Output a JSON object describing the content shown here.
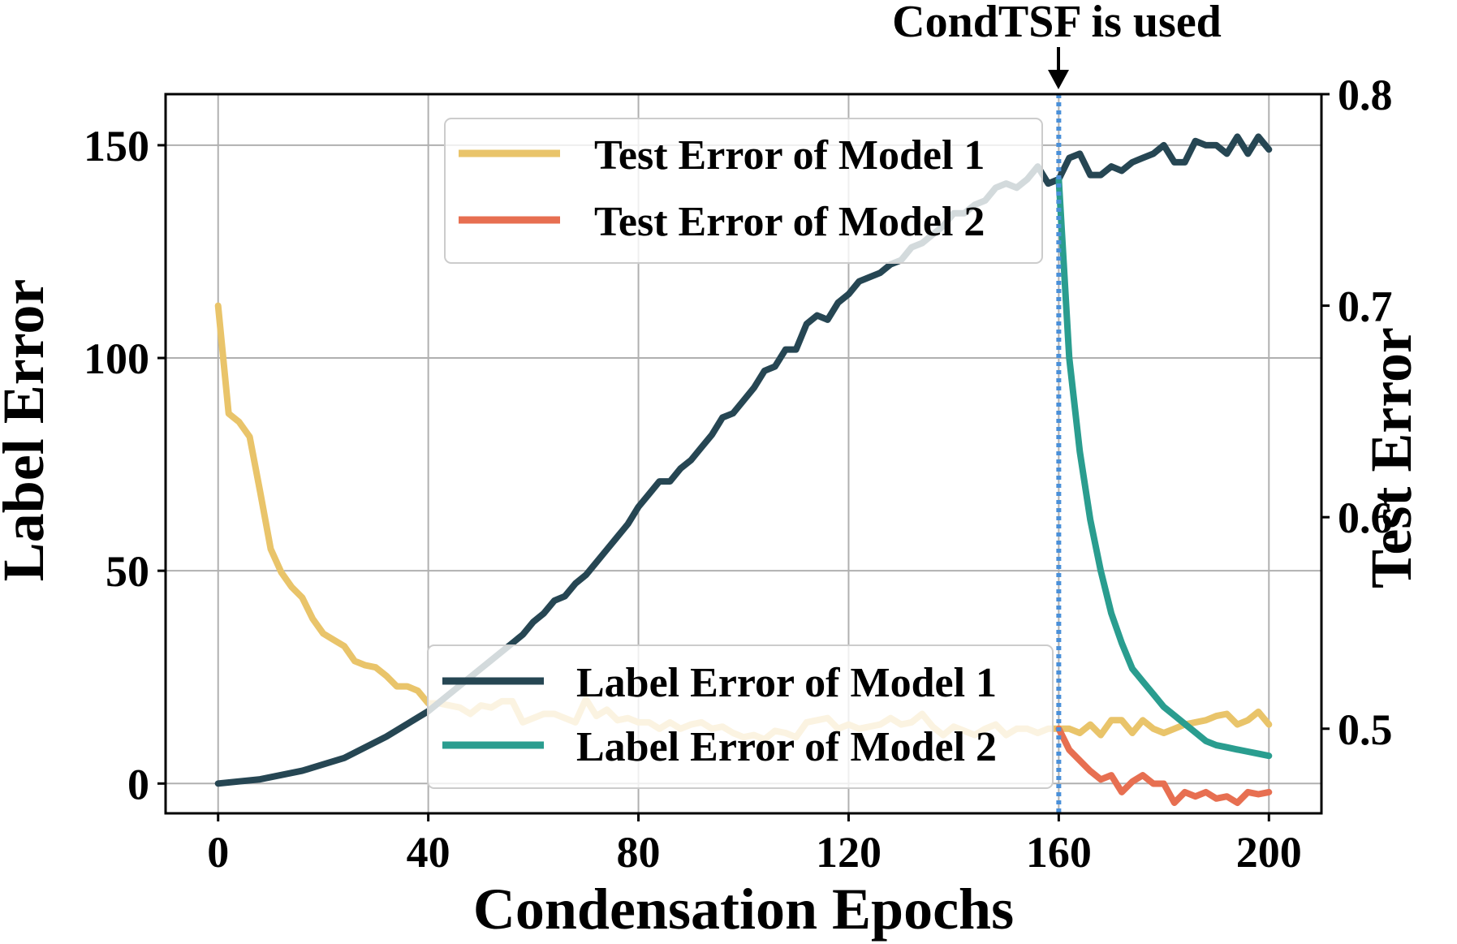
{
  "chart_data": {
    "type": "line",
    "annotation": {
      "text": "CondTSF is used",
      "x": 160
    },
    "xlabel": "Condensation Epochs",
    "ylabel_left": "Label Error",
    "ylabel_right": "Test Error",
    "xlim": [
      -10,
      210
    ],
    "ylim_left": [
      -7,
      162
    ],
    "ylim_right": [
      0.46,
      0.8
    ],
    "xticks": [
      "0",
      "40",
      "80",
      "120",
      "160",
      "200"
    ],
    "yticks_left": [
      "0",
      "50",
      "100",
      "150"
    ],
    "yticks_right": [
      "0.5",
      "0.6",
      "0.7",
      "0.8"
    ],
    "grid": true,
    "colors": {
      "label1": "#264653",
      "label2": "#2a9d8f",
      "test1": "#e9c46a",
      "test2": "#e76f51",
      "vline": "#4a90d9"
    },
    "legend_test": {
      "position": "top-center",
      "entries": [
        "Test Error of Model 1",
        "Test Error of Model 2"
      ]
    },
    "legend_label": {
      "position": "bottom-center",
      "entries": [
        "Label Error of Model 1",
        "Label Error of Model 2"
      ]
    },
    "series": [
      {
        "name": "Label Error of Model 1",
        "axis": "left",
        "x": [
          0,
          4,
          8,
          12,
          16,
          20,
          24,
          28,
          32,
          36,
          40,
          44,
          48,
          52,
          56,
          58,
          60,
          62,
          64,
          66,
          68,
          70,
          72,
          74,
          76,
          78,
          80,
          82,
          84,
          86,
          88,
          90,
          92,
          94,
          96,
          98,
          100,
          102,
          104,
          106,
          108,
          110,
          112,
          114,
          116,
          118,
          120,
          122,
          124,
          126,
          128,
          130,
          132,
          134,
          136,
          138,
          140,
          142,
          144,
          146,
          148,
          150,
          152,
          154,
          156,
          158,
          160,
          162,
          164,
          166,
          168,
          170,
          172,
          174,
          176,
          178,
          180,
          182,
          184,
          186,
          188,
          190,
          192,
          194,
          196,
          198,
          200
        ],
        "y": [
          0,
          0.5,
          1,
          2,
          3,
          4.5,
          6,
          8.5,
          11,
          14,
          17,
          21,
          25,
          29,
          33,
          35,
          38,
          40,
          43,
          44,
          47,
          49,
          52,
          55,
          58,
          61,
          65,
          68,
          71,
          71,
          74,
          76,
          79,
          82,
          86,
          87,
          90,
          93,
          97,
          98,
          102,
          102,
          108,
          110,
          109,
          113,
          115,
          118,
          119,
          120,
          122,
          123,
          126,
          127,
          129,
          131,
          134,
          134,
          136,
          137,
          140,
          141,
          140,
          142,
          145,
          141,
          142,
          147,
          148,
          143,
          143,
          145,
          144,
          146,
          147,
          148,
          150,
          146,
          146,
          151,
          150,
          150,
          148,
          152,
          148,
          152,
          149
        ]
      },
      {
        "name": "Label Error of Model 2",
        "axis": "left",
        "x": [
          160,
          162,
          164,
          166,
          168,
          170,
          172,
          174,
          176,
          178,
          180,
          182,
          184,
          186,
          188,
          190,
          192,
          194,
          196,
          198,
          200
        ],
        "y": [
          142,
          100,
          78,
          62,
          50,
          40,
          33,
          27,
          24,
          21,
          18,
          16,
          14,
          12,
          10,
          9,
          8.5,
          8,
          7.5,
          7,
          6.5
        ]
      },
      {
        "name": "Test Error of Model 1",
        "axis": "right",
        "x": [
          0,
          2,
          4,
          6,
          8,
          10,
          12,
          14,
          16,
          18,
          20,
          22,
          24,
          26,
          28,
          30,
          32,
          34,
          36,
          38,
          40,
          42,
          44,
          46,
          48,
          50,
          52,
          54,
          56,
          58,
          60,
          62,
          64,
          66,
          68,
          70,
          72,
          74,
          76,
          78,
          80,
          82,
          84,
          86,
          88,
          90,
          92,
          94,
          96,
          98,
          100,
          102,
          104,
          106,
          108,
          110,
          112,
          114,
          116,
          118,
          120,
          122,
          124,
          126,
          128,
          130,
          132,
          134,
          136,
          138,
          140,
          142,
          144,
          146,
          148,
          150,
          152,
          154,
          156,
          158,
          160,
          162,
          164,
          166,
          168,
          170,
          172,
          174,
          176,
          178,
          180,
          182,
          184,
          186,
          188,
          190,
          192,
          194,
          196,
          198,
          200
        ],
        "y": [
          0.7,
          0.649,
          0.645,
          0.638,
          0.612,
          0.585,
          0.574,
          0.567,
          0.562,
          0.552,
          0.545,
          0.542,
          0.539,
          0.532,
          0.53,
          0.529,
          0.525,
          0.52,
          0.52,
          0.518,
          0.512,
          0.512,
          0.511,
          0.51,
          0.507,
          0.511,
          0.51,
          0.513,
          0.513,
          0.503,
          0.505,
          0.507,
          0.507,
          0.505,
          0.503,
          0.514,
          0.506,
          0.509,
          0.504,
          0.505,
          0.503,
          0.503,
          0.5,
          0.503,
          0.5,
          0.502,
          0.503,
          0.5,
          0.501,
          0.498,
          0.496,
          0.497,
          0.495,
          0.499,
          0.498,
          0.496,
          0.503,
          0.504,
          0.505,
          0.5,
          0.502,
          0.5,
          0.501,
          0.502,
          0.505,
          0.502,
          0.503,
          0.507,
          0.501,
          0.497,
          0.501,
          0.499,
          0.497,
          0.5,
          0.502,
          0.497,
          0.5,
          0.5,
          0.498,
          0.5,
          0.5,
          0.5,
          0.498,
          0.502,
          0.497,
          0.504,
          0.504,
          0.498,
          0.504,
          0.5,
          0.498,
          0.5,
          0.502,
          0.503,
          0.504,
          0.506,
          0.507,
          0.502,
          0.504,
          0.508,
          0.502
        ]
      },
      {
        "name": "Test Error of Model 2",
        "axis": "right",
        "x": [
          160,
          162,
          164,
          166,
          168,
          170,
          172,
          174,
          176,
          178,
          180,
          182,
          184,
          186,
          188,
          190,
          192,
          194,
          196,
          198,
          200
        ],
        "y": [
          0.5,
          0.49,
          0.485,
          0.48,
          0.476,
          0.478,
          0.47,
          0.475,
          0.478,
          0.474,
          0.474,
          0.465,
          0.47,
          0.468,
          0.47,
          0.467,
          0.468,
          0.465,
          0.47,
          0.469,
          0.47
        ]
      }
    ]
  }
}
